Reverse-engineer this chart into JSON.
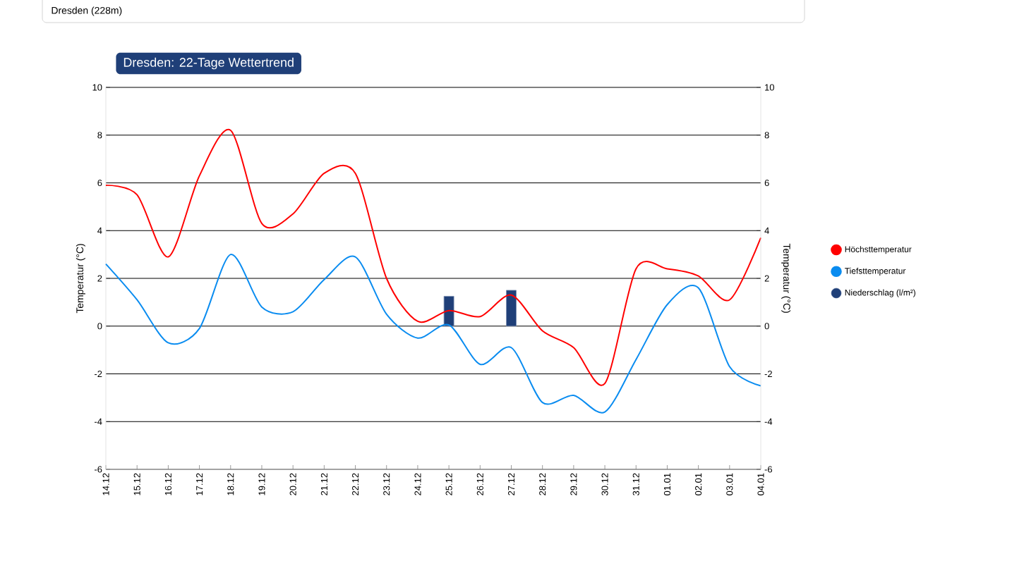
{
  "chart_data": {
    "type": "line",
    "title": "Dresden: 22-Tage Wettertrend",
    "annotations": [
      "Dresden (228m)"
    ],
    "ylabel": "Temperatur (°C)",
    "y2label": "Temperatur (°C)",
    "categories": [
      "14.12",
      "15.12",
      "16.12",
      "17.12",
      "18.12",
      "19.12",
      "20.12",
      "21.12",
      "22.12",
      "23.12",
      "24.12",
      "25.12",
      "26.12",
      "27.12",
      "28.12",
      "29.12",
      "30.12",
      "31.12",
      "01.01",
      "02.01",
      "03.01",
      "04.01"
    ],
    "series": [
      {
        "name": "Höchsttemperatur",
        "color": "#ff0000",
        "values": [
          5.9,
          5.5,
          2.9,
          6.3,
          8.2,
          4.3,
          4.7,
          6.4,
          6.4,
          2.0,
          0.2,
          0.65,
          0.4,
          1.3,
          -0.2,
          -0.9,
          -2.4,
          2.4,
          2.4,
          2.1,
          1.1,
          3.7
        ]
      },
      {
        "name": "Tiefsttemperatur",
        "color": "#0a8cf0",
        "values": [
          2.6,
          1.1,
          -0.7,
          -0.1,
          3.0,
          0.8,
          0.6,
          1.95,
          2.9,
          0.5,
          -0.5,
          0.05,
          -1.6,
          -0.9,
          -3.2,
          -2.9,
          -3.6,
          -1.4,
          0.9,
          1.6,
          -1.7,
          -2.5
        ]
      },
      {
        "name": "Niederschlag (l/m²)",
        "type": "bar",
        "color": "#1f3f78",
        "values": [
          null,
          null,
          null,
          null,
          null,
          null,
          null,
          null,
          null,
          null,
          null,
          1.25,
          null,
          1.5,
          null,
          null,
          null,
          null,
          null,
          null,
          null,
          null
        ]
      }
    ],
    "ylim": [
      -6,
      10
    ],
    "yticks": [
      -6,
      -4,
      -2,
      0,
      2,
      4,
      6,
      8,
      10
    ],
    "y2lim": [
      -6,
      10
    ],
    "y2ticks": [
      -6,
      -4,
      -2,
      0,
      2,
      4,
      6,
      8,
      10
    ],
    "grid": "y",
    "legend": "right"
  }
}
